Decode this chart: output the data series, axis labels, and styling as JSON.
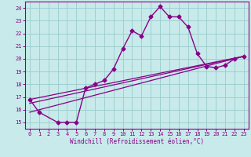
{
  "xlabel": "Windchill (Refroidissement éolien,°C)",
  "bg_color": "#c8eaea",
  "line_color": "#880088",
  "grid_color": "#99cccc",
  "xlim": [
    -0.5,
    23.5
  ],
  "ylim": [
    14.5,
    24.5
  ],
  "yticks": [
    15,
    16,
    17,
    18,
    19,
    20,
    21,
    22,
    23,
    24
  ],
  "xticks": [
    0,
    1,
    2,
    3,
    4,
    5,
    6,
    7,
    8,
    9,
    10,
    11,
    12,
    13,
    14,
    15,
    16,
    17,
    18,
    19,
    20,
    21,
    22,
    23
  ],
  "main_x": [
    0,
    1,
    3,
    4,
    5,
    6,
    7,
    8,
    9,
    10,
    11,
    12,
    13,
    14,
    15,
    16,
    17,
    18,
    19,
    20,
    21,
    22,
    23
  ],
  "main_y": [
    16.8,
    15.8,
    15.0,
    15.0,
    15.0,
    17.7,
    18.0,
    18.3,
    19.2,
    20.8,
    22.2,
    21.8,
    23.3,
    24.1,
    23.3,
    23.3,
    22.5,
    20.4,
    19.4,
    19.3,
    19.5,
    20.0,
    20.2
  ],
  "trend1_x": [
    0,
    23
  ],
  "trend1_y": [
    16.8,
    20.2
  ],
  "trend2_x": [
    0,
    23
  ],
  "trend2_y": [
    16.5,
    20.2
  ],
  "trend3_x": [
    0,
    23
  ],
  "trend3_y": [
    15.8,
    20.2
  ]
}
